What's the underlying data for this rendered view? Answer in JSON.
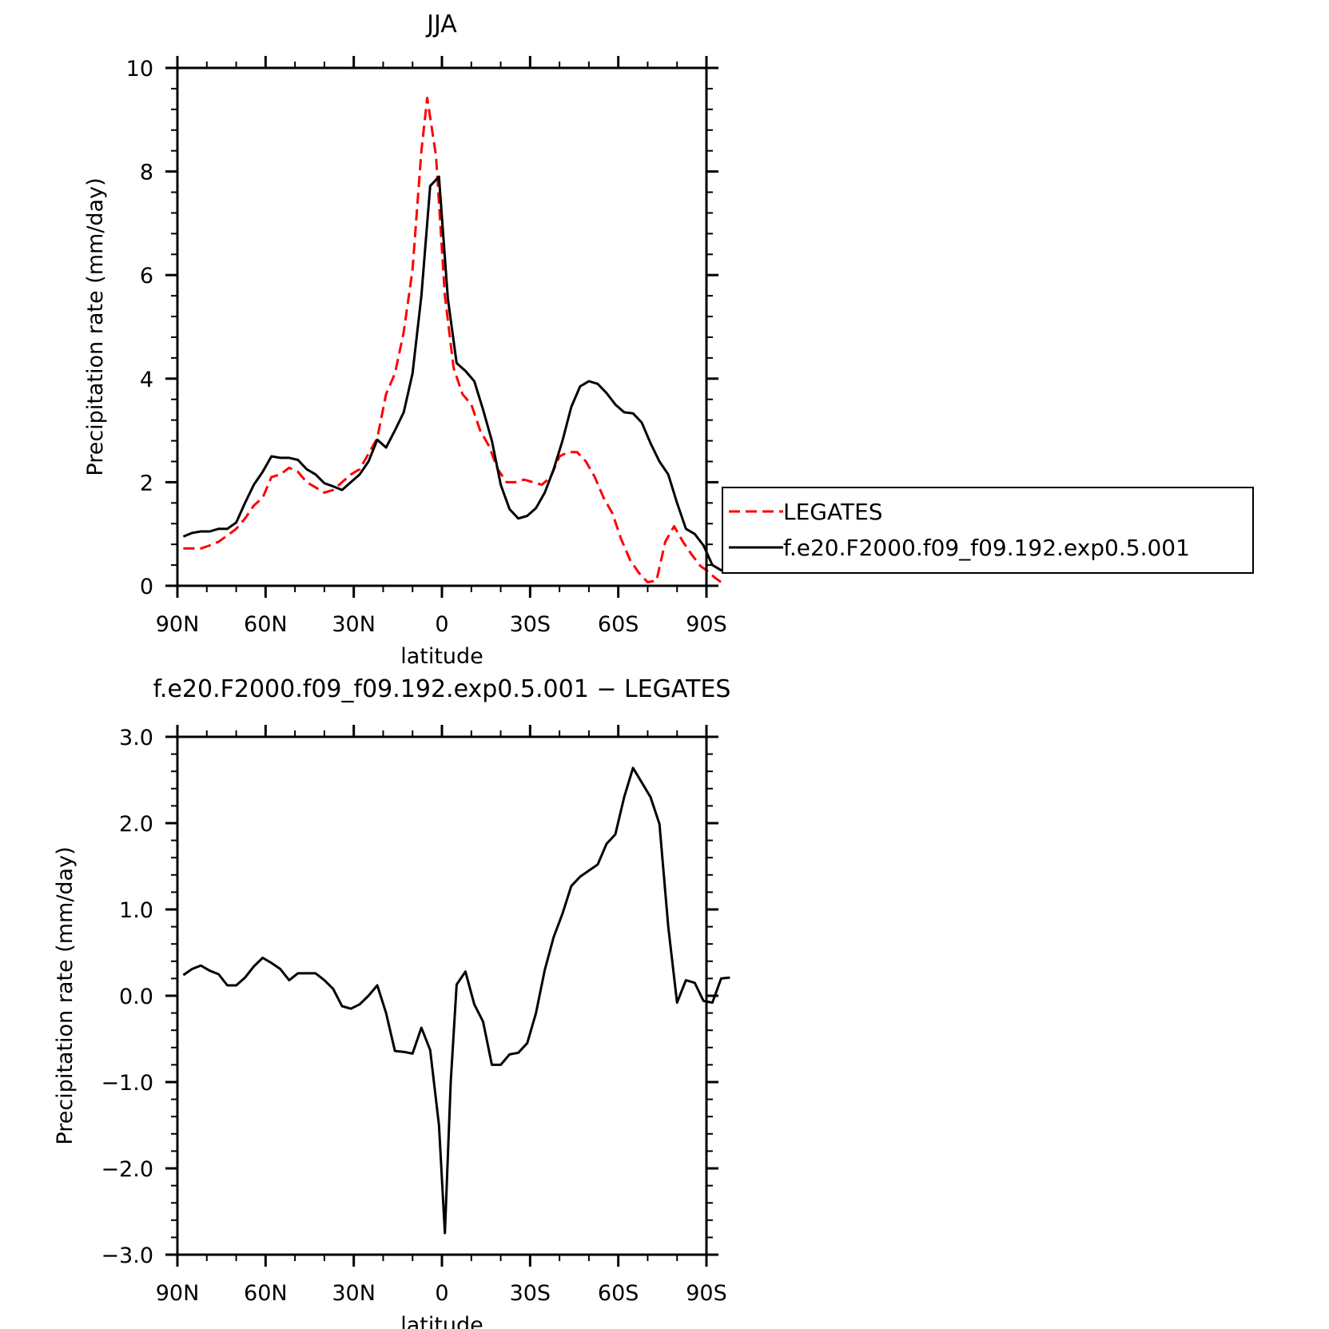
{
  "chart_data": [
    {
      "type": "line",
      "title": "JJA",
      "xlabel": "latitude",
      "ylabel": "Precipitation rate (mm/day)",
      "xlim": [
        90,
        -90
      ],
      "ylim": [
        0,
        10
      ],
      "x_ticks": [
        90,
        60,
        30,
        0,
        -30,
        -60,
        -90
      ],
      "x_tick_labels": [
        "90N",
        "60N",
        "30N",
        "0",
        "30S",
        "60S",
        "90S"
      ],
      "y_ticks": [
        0,
        2,
        4,
        6,
        8,
        10
      ],
      "y_tick_labels": [
        "0",
        "2",
        "4",
        "6",
        "8",
        "10"
      ],
      "legend": {
        "placement": "right"
      },
      "series": [
        {
          "name": "LEGATES",
          "color": "#ff0000",
          "style": "dashed",
          "points": [
            [
              88,
              0.72
            ],
            [
              85,
              0.72
            ],
            [
              82,
              0.72
            ],
            [
              79,
              0.78
            ],
            [
              76,
              0.85
            ],
            [
              73,
              0.97
            ],
            [
              70,
              1.1
            ],
            [
              67,
              1.3
            ],
            [
              64,
              1.55
            ],
            [
              61,
              1.7
            ],
            [
              58,
              2.1
            ],
            [
              55,
              2.15
            ],
            [
              52,
              2.28
            ],
            [
              49,
              2.2
            ],
            [
              46,
              2.0
            ],
            [
              43,
              1.9
            ],
            [
              40,
              1.8
            ],
            [
              37,
              1.85
            ],
            [
              34,
              2.0
            ],
            [
              31,
              2.15
            ],
            [
              28,
              2.25
            ],
            [
              25,
              2.55
            ],
            [
              22,
              2.85
            ],
            [
              19,
              3.7
            ],
            [
              16,
              4.1
            ],
            [
              13,
              4.9
            ],
            [
              10,
              6.1
            ],
            [
              7,
              8.4
            ],
            [
              5,
              9.42
            ],
            [
              2,
              8.3
            ],
            [
              -1,
              5.6
            ],
            [
              -4,
              4.2
            ],
            [
              -7,
              3.7
            ],
            [
              -10,
              3.5
            ],
            [
              -13,
              3.0
            ],
            [
              -16,
              2.7
            ],
            [
              -19,
              2.25
            ],
            [
              -22,
              2.0
            ],
            [
              -25,
              2.0
            ],
            [
              -28,
              2.05
            ],
            [
              -31,
              2.0
            ],
            [
              -34,
              1.95
            ],
            [
              -37,
              2.1
            ],
            [
              -40,
              2.5
            ],
            [
              -43,
              2.58
            ],
            [
              -46,
              2.58
            ],
            [
              -49,
              2.4
            ],
            [
              -52,
              2.1
            ],
            [
              -55,
              1.7
            ],
            [
              -58,
              1.4
            ],
            [
              -61,
              0.9
            ],
            [
              -64,
              0.5
            ],
            [
              -67,
              0.25
            ],
            [
              -70,
              0.07
            ],
            [
              -73,
              0.1
            ],
            [
              -76,
              0.85
            ],
            [
              -79,
              1.15
            ],
            [
              -82,
              0.85
            ],
            [
              -85,
              0.6
            ],
            [
              -88,
              0.38
            ],
            [
              -90,
              0.3
            ],
            [
              -93,
              0.15
            ],
            [
              -96,
              0.03
            ]
          ]
        },
        {
          "name": "f.e20.F2000.f09_f09.192.exp0.5.001",
          "color": "#000000",
          "style": "solid",
          "points": [
            [
              88,
              0.95
            ],
            [
              85,
              1.02
            ],
            [
              82,
              1.05
            ],
            [
              79,
              1.05
            ],
            [
              76,
              1.1
            ],
            [
              73,
              1.1
            ],
            [
              70,
              1.22
            ],
            [
              67,
              1.6
            ],
            [
              64,
              1.95
            ],
            [
              61,
              2.2
            ],
            [
              58,
              2.5
            ],
            [
              55,
              2.47
            ],
            [
              52,
              2.47
            ],
            [
              49,
              2.43
            ],
            [
              46,
              2.25
            ],
            [
              43,
              2.15
            ],
            [
              40,
              1.98
            ],
            [
              37,
              1.92
            ],
            [
              34,
              1.85
            ],
            [
              31,
              2.0
            ],
            [
              28,
              2.15
            ],
            [
              25,
              2.4
            ],
            [
              22,
              2.82
            ],
            [
              19,
              2.67
            ],
            [
              16,
              3.0
            ],
            [
              13,
              3.35
            ],
            [
              10,
              4.1
            ],
            [
              7,
              5.6
            ],
            [
              4,
              7.72
            ],
            [
              1,
              7.9
            ],
            [
              -2,
              5.55
            ],
            [
              -5,
              4.3
            ],
            [
              -8,
              4.15
            ],
            [
              -11,
              3.95
            ],
            [
              -14,
              3.4
            ],
            [
              -17,
              2.8
            ],
            [
              -20,
              1.95
            ],
            [
              -23,
              1.48
            ],
            [
              -26,
              1.3
            ],
            [
              -29,
              1.35
            ],
            [
              -32,
              1.5
            ],
            [
              -35,
              1.8
            ],
            [
              -38,
              2.25
            ],
            [
              -41,
              2.8
            ],
            [
              -44,
              3.45
            ],
            [
              -47,
              3.85
            ],
            [
              -50,
              3.95
            ],
            [
              -53,
              3.9
            ],
            [
              -56,
              3.72
            ],
            [
              -59,
              3.5
            ],
            [
              -62,
              3.35
            ],
            [
              -65,
              3.33
            ],
            [
              -68,
              3.15
            ],
            [
              -71,
              2.75
            ],
            [
              -74,
              2.4
            ],
            [
              -77,
              2.15
            ],
            [
              -80,
              1.6
            ],
            [
              -83,
              1.1
            ],
            [
              -86,
              1.0
            ],
            [
              -89,
              0.78
            ],
            [
              -92,
              0.4
            ],
            [
              -95,
              0.3
            ],
            [
              -98,
              0.3
            ],
            [
              -101,
              0.27
            ]
          ]
        }
      ]
    },
    {
      "type": "line",
      "title": "f.e20.F2000.f09_f09.192.exp0.5.001 - LEGATES",
      "xlabel": "latitude",
      "ylabel": "Precipitation rate (mm/day)",
      "xlim": [
        90,
        -90
      ],
      "ylim": [
        -3,
        3
      ],
      "x_ticks": [
        90,
        60,
        30,
        0,
        -30,
        -60,
        -90
      ],
      "x_tick_labels": [
        "90N",
        "60N",
        "30N",
        "0",
        "30S",
        "60S",
        "90S"
      ],
      "y_ticks": [
        -3,
        -2,
        -1,
        0,
        1,
        2,
        3
      ],
      "y_tick_labels": [
        "-3.0",
        "-2.0",
        "-1.0",
        "0.0",
        "1.0",
        "2.0",
        "3.0"
      ],
      "series": [
        {
          "color": "#000000",
          "style": "solid",
          "points": [
            [
              88,
              0.24
            ],
            [
              85,
              0.31
            ],
            [
              82,
              0.35
            ],
            [
              79,
              0.29
            ],
            [
              76,
              0.25
            ],
            [
              73,
              0.12
            ],
            [
              70,
              0.12
            ],
            [
              67,
              0.21
            ],
            [
              64,
              0.34
            ],
            [
              61,
              0.44
            ],
            [
              58,
              0.38
            ],
            [
              55,
              0.31
            ],
            [
              52,
              0.18
            ],
            [
              49,
              0.26
            ],
            [
              46,
              0.26
            ],
            [
              43,
              0.26
            ],
            [
              40,
              0.18
            ],
            [
              37,
              0.08
            ],
            [
              34,
              -0.12
            ],
            [
              31,
              -0.15
            ],
            [
              28,
              -0.1
            ],
            [
              25,
              0.0
            ],
            [
              22,
              0.12
            ],
            [
              19,
              -0.2
            ],
            [
              16,
              -0.64
            ],
            [
              13,
              -0.65
            ],
            [
              10,
              -0.67
            ],
            [
              7,
              -0.37
            ],
            [
              4,
              -0.63
            ],
            [
              1,
              -1.5
            ],
            [
              -1,
              -2.75
            ],
            [
              -3,
              -1.0
            ],
            [
              -5,
              0.13
            ],
            [
              -8,
              0.28
            ],
            [
              -11,
              -0.1
            ],
            [
              -14,
              -0.3
            ],
            [
              -17,
              -0.8
            ],
            [
              -20,
              -0.8
            ],
            [
              -23,
              -0.68
            ],
            [
              -26,
              -0.66
            ],
            [
              -29,
              -0.55
            ],
            [
              -32,
              -0.2
            ],
            [
              -35,
              0.3
            ],
            [
              -38,
              0.68
            ],
            [
              -41,
              0.95
            ],
            [
              -44,
              1.27
            ],
            [
              -47,
              1.38
            ],
            [
              -50,
              1.45
            ],
            [
              -53,
              1.52
            ],
            [
              -56,
              1.76
            ],
            [
              -59,
              1.87
            ],
            [
              -62,
              2.3
            ],
            [
              -65,
              2.64
            ],
            [
              -68,
              2.47
            ],
            [
              -71,
              2.3
            ],
            [
              -74,
              1.99
            ],
            [
              -77,
              0.8
            ],
            [
              -80,
              -0.08
            ],
            [
              -83,
              0.18
            ],
            [
              -86,
              0.15
            ],
            [
              -89,
              -0.06
            ],
            [
              -92,
              -0.08
            ],
            [
              -95,
              0.2
            ],
            [
              -98,
              0.21
            ]
          ]
        }
      ]
    }
  ]
}
